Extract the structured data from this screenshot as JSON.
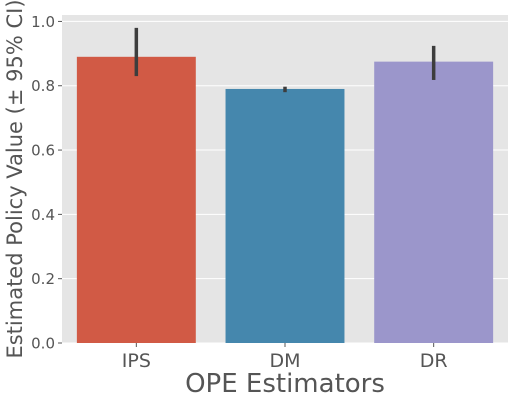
{
  "chart_data": {
    "type": "bar",
    "title": "",
    "xlabel": "OPE Estimators",
    "ylabel": "Estimated Policy Value (± 95% CI)",
    "categories": [
      "IPS",
      "DM",
      "DR"
    ],
    "values": [
      0.89,
      0.79,
      0.875
    ],
    "ci_low": [
      0.83,
      0.78,
      0.818
    ],
    "ci_high": [
      0.98,
      0.797,
      0.924
    ],
    "ylim": [
      0,
      1.02
    ],
    "yticks": [
      "0.0",
      "0.2",
      "0.4",
      "0.6",
      "0.8",
      "1.0"
    ],
    "ytick_values": [
      0,
      0.2,
      0.4,
      0.6,
      0.8,
      1.0
    ],
    "grid": true,
    "colors": [
      "#d15a45",
      "#4587ad",
      "#9b96cb"
    ],
    "plot_background": "#e5e5e5",
    "errorbar_color": "#3d3d3d"
  }
}
